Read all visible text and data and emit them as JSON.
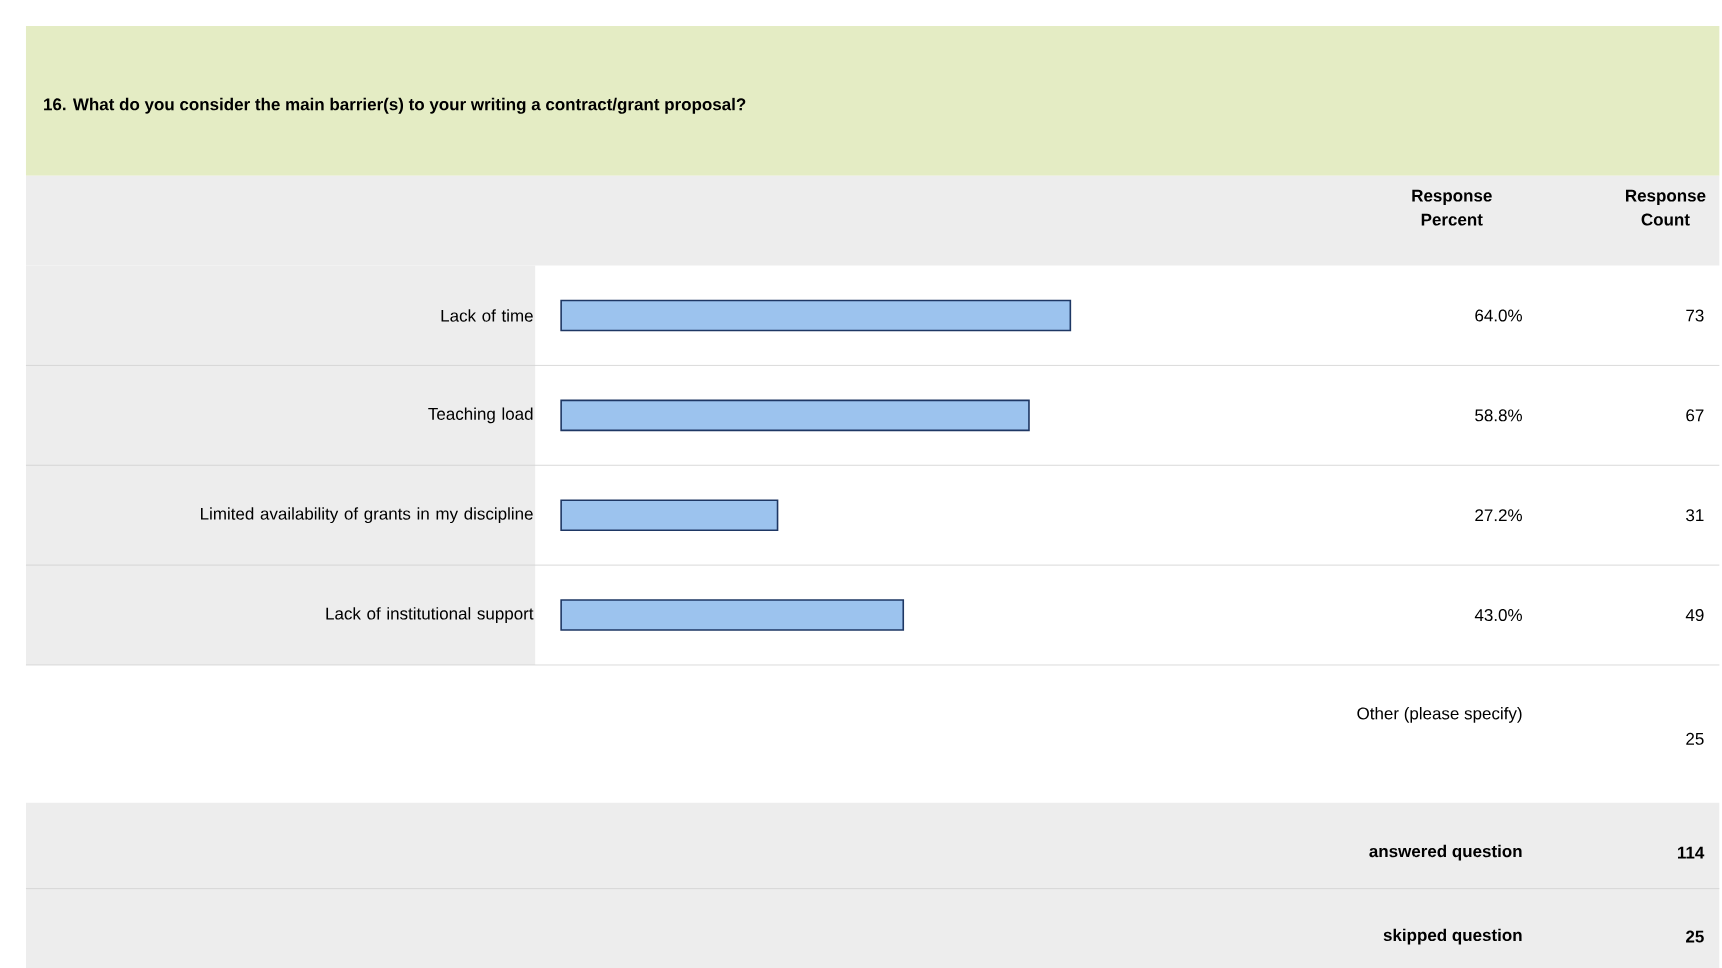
{
  "chart_data": {
    "type": "bar",
    "orientation": "horizontal",
    "title": "16. What do you consider the main barrier(s) to your writing a contract/grant proposal?",
    "categories": [
      "Lack of time",
      "Teaching load",
      "Limited availability of grants in my discipline",
      "Lack of institutional support"
    ],
    "values": [
      64.0,
      58.8,
      27.2,
      43.0
    ],
    "value_labels": [
      "64.0%",
      "58.8%",
      "27.2%",
      "43.0%"
    ],
    "color": "#9cc3ee",
    "tick_labels": "y",
    "annotations": [
      "Response Percent",
      "Response Count",
      "73",
      "67",
      "31",
      "49",
      "Other (please specify)",
      "25",
      "answered question",
      "114",
      "skipped question",
      "25"
    ]
  }
}
